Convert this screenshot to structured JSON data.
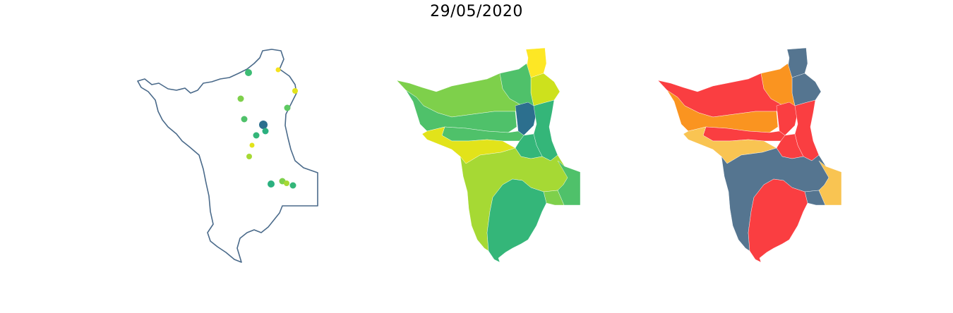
{
  "title": "29/05/2020",
  "colors": {
    "outline": "#4a6a8a",
    "dark_blue": "#2c6f8e",
    "teal": "#2bb07f",
    "green": "#34b679",
    "mid_green": "#4fc16a",
    "light_green": "#7ed04b",
    "lime": "#a6d934",
    "yellow_green": "#cde11d",
    "yellow": "#fde725",
    "slate": "#557590",
    "red": "#fa3e41",
    "orange": "#fa9420",
    "light_orange": "#f9c452"
  },
  "maps": [
    {
      "name": "station-points-map",
      "style": "outline-with-points"
    },
    {
      "name": "basin-viridis-map",
      "style": "viridis-choropleth"
    },
    {
      "name": "basin-alert-map",
      "style": "alert-choropleth"
    }
  ]
}
